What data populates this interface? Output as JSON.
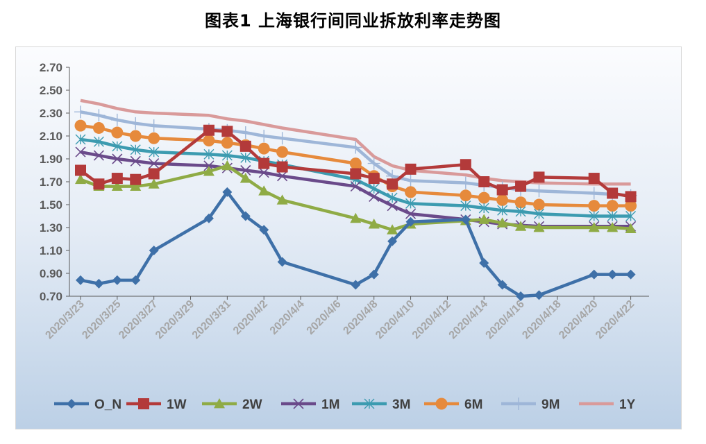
{
  "chart_data": {
    "type": "line",
    "title": "图表1 上海银行间同业拆放利率走势图",
    "ylim": [
      0.7,
      2.7
    ],
    "yticks": [
      "2.70",
      "2.50",
      "2.30",
      "2.10",
      "1.90",
      "1.70",
      "1.50",
      "1.30",
      "1.10",
      "0.90",
      "0.70"
    ],
    "xtick_labels": [
      "2020/3/23",
      "2020/3/25",
      "2020/3/27",
      "2020/3/29",
      "2020/3/31",
      "2020/4/2",
      "2020/4/4",
      "2020/4/6",
      "2020/4/8",
      "2020/4/10",
      "2020/4/12",
      "2020/4/14",
      "2020/4/16",
      "2020/4/18",
      "2020/4/20",
      "2020/4/22"
    ],
    "x": [
      "2020/3/23",
      "2020/3/24",
      "2020/3/25",
      "2020/3/26",
      "2020/3/27",
      "2020/3/30",
      "2020/3/31",
      "2020/4/1",
      "2020/4/2",
      "2020/4/3",
      "2020/4/7",
      "2020/4/8",
      "2020/4/9",
      "2020/4/10",
      "2020/4/13",
      "2020/4/14",
      "2020/4/15",
      "2020/4/16",
      "2020/4/17",
      "2020/4/20",
      "2020/4/21",
      "2020/4/22"
    ],
    "legend_position": "bottom",
    "series": [
      {
        "name": "O_N",
        "color": "#3e70a8",
        "marker": "diamond",
        "values": [
          0.84,
          0.81,
          0.84,
          0.84,
          1.1,
          1.38,
          1.61,
          1.4,
          1.28,
          1.0,
          0.8,
          0.89,
          1.18,
          1.35,
          1.37,
          0.99,
          0.8,
          0.7,
          0.71,
          0.89,
          0.89,
          0.89
        ]
      },
      {
        "name": "1W",
        "color": "#b33a3a",
        "marker": "square",
        "values": [
          1.8,
          1.68,
          1.73,
          1.72,
          1.77,
          2.15,
          2.14,
          2.01,
          1.86,
          1.83,
          1.77,
          1.73,
          1.68,
          1.81,
          1.85,
          1.7,
          1.63,
          1.66,
          1.74,
          1.73,
          1.6,
          1.57
        ]
      },
      {
        "name": "2W",
        "color": "#8fab45",
        "marker": "triangle",
        "values": [
          1.72,
          1.66,
          1.66,
          1.66,
          1.68,
          1.79,
          1.84,
          1.73,
          1.62,
          1.54,
          1.38,
          1.33,
          1.28,
          1.33,
          1.36,
          1.37,
          1.34,
          1.31,
          1.3,
          1.3,
          1.3,
          1.29
        ]
      },
      {
        "name": "1M",
        "color": "#6a4a8a",
        "marker": "x",
        "values": [
          1.96,
          1.93,
          1.9,
          1.88,
          1.86,
          1.84,
          1.82,
          1.8,
          1.78,
          1.75,
          1.66,
          1.57,
          1.49,
          1.42,
          1.37,
          1.35,
          1.33,
          1.32,
          1.31,
          1.31,
          1.31,
          1.31
        ]
      },
      {
        "name": "3M",
        "color": "#3c9bb0",
        "marker": "asterisk",
        "values": [
          2.07,
          2.05,
          2.01,
          1.98,
          1.96,
          1.94,
          1.93,
          1.91,
          1.88,
          1.85,
          1.72,
          1.64,
          1.56,
          1.51,
          1.49,
          1.47,
          1.45,
          1.44,
          1.42,
          1.4,
          1.4,
          1.4
        ]
      },
      {
        "name": "6M",
        "color": "#e68a3c",
        "marker": "circle",
        "values": [
          2.19,
          2.17,
          2.13,
          2.1,
          2.08,
          2.06,
          2.04,
          2.02,
          1.99,
          1.96,
          1.86,
          1.75,
          1.66,
          1.61,
          1.58,
          1.56,
          1.54,
          1.52,
          1.5,
          1.49,
          1.49,
          1.49
        ]
      },
      {
        "name": "9M",
        "color": "#9eb6d8",
        "marker": "plus",
        "values": [
          2.31,
          2.28,
          2.24,
          2.21,
          2.19,
          2.16,
          2.15,
          2.13,
          2.1,
          2.08,
          2.0,
          1.86,
          1.75,
          1.71,
          1.69,
          1.67,
          1.65,
          1.63,
          1.62,
          1.6,
          1.59,
          1.58
        ]
      },
      {
        "name": "1Y",
        "color": "#d99a9a",
        "marker": "none",
        "values": [
          2.41,
          2.38,
          2.34,
          2.31,
          2.3,
          2.28,
          2.25,
          2.23,
          2.2,
          2.17,
          2.07,
          1.92,
          1.84,
          1.8,
          1.76,
          1.73,
          1.71,
          1.7,
          1.69,
          1.68,
          1.68,
          1.68
        ]
      }
    ]
  }
}
